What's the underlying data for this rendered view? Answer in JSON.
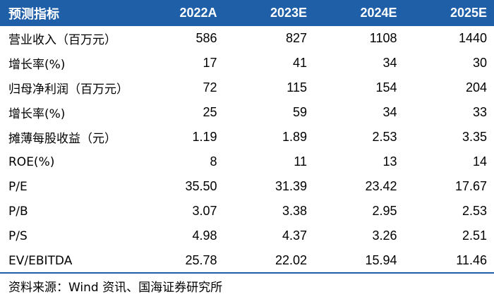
{
  "table": {
    "header": [
      "预测指标",
      "2022A",
      "2023E",
      "2024E",
      "2025E"
    ],
    "rows": [
      {
        "label": "营业收入（百万元）",
        "values": [
          "586",
          "827",
          "1108",
          "1440"
        ]
      },
      {
        "label": "增长率(%)",
        "values": [
          "17",
          "41",
          "34",
          "30"
        ]
      },
      {
        "label": "归母净利润（百万元）",
        "values": [
          "72",
          "115",
          "154",
          "204"
        ]
      },
      {
        "label": "增长率(%)",
        "values": [
          "25",
          "59",
          "34",
          "33"
        ]
      },
      {
        "label": "摊薄每股收益（元）",
        "values": [
          "1.19",
          "1.89",
          "2.53",
          "3.35"
        ]
      },
      {
        "label": "ROE(%)",
        "values": [
          "8",
          "11",
          "13",
          "14"
        ]
      },
      {
        "label": "P/E",
        "values": [
          "35.50",
          "31.39",
          "23.42",
          "17.67"
        ]
      },
      {
        "label": "P/B",
        "values": [
          "3.07",
          "3.38",
          "2.95",
          "2.53"
        ]
      },
      {
        "label": "P/S",
        "values": [
          "4.98",
          "4.37",
          "3.26",
          "2.51"
        ]
      },
      {
        "label": "EV/EBITDA",
        "values": [
          "25.78",
          "22.02",
          "15.94",
          "11.46"
        ]
      }
    ]
  },
  "source": "资料来源：Wind 资讯、国海证券研究所",
  "colors": {
    "header_bg": "#1f5fa8",
    "header_text": "#ffffff"
  }
}
